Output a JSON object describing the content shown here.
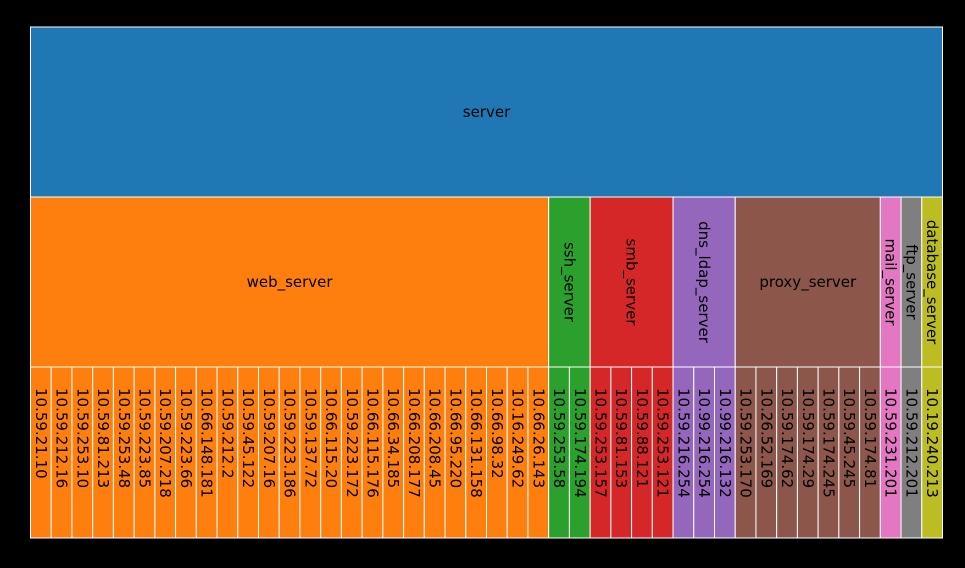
{
  "colors": {
    "background": "#000000",
    "border": "#ffffff",
    "label": "#000000"
  },
  "chart_data": {
    "type": "icicle",
    "title": "",
    "root": {
      "name": "server",
      "color": "#1f77b4",
      "children": [
        {
          "name": "web_server",
          "color": "#ff7f0e",
          "children": [
            "10.59.21.10",
            "10.59.212.16",
            "10.59.253.10",
            "10.59.81.213",
            "10.59.253.48",
            "10.59.223.85",
            "10.59.207.218",
            "10.59.223.66",
            "10.66.148.181",
            "10.59.212.2",
            "10.59.45.122",
            "10.59.207.16",
            "10.59.223.186",
            "10.59.137.72",
            "10.66.115.20",
            "10.59.223.172",
            "10.66.115.176",
            "10.66.34.185",
            "10.66.208.177",
            "10.66.208.45",
            "10.66.95.220",
            "10.66.131.158",
            "10.66.98.32",
            "10.16.249.62",
            "10.66.26.143"
          ]
        },
        {
          "name": "ssh_server",
          "color": "#2ca02c",
          "children": [
            "10.59.253.58",
            "10.59.174.194"
          ]
        },
        {
          "name": "smb_server",
          "color": "#d62728",
          "children": [
            "10.59.253.157",
            "10.59.81.153",
            "10.59.88.121",
            "10.59.253.121"
          ]
        },
        {
          "name": "dns_ldap_server",
          "color": "#9467bd",
          "children": [
            "10.59.216.254",
            "10.99.216.254",
            "10.99.216.132"
          ]
        },
        {
          "name": "proxy_server",
          "color": "#8c564b",
          "children": [
            "10.59.253.170",
            "10.26.52.169",
            "10.59.174.62",
            "10.59.174.29",
            "10.59.174.245",
            "10.59.45.245",
            "10.59.174.81"
          ]
        },
        {
          "name": "mail_server",
          "color": "#e377c2",
          "children": [
            "10.59.231.201"
          ]
        },
        {
          "name": "ftp_server",
          "color": "#7f7f7f",
          "children": [
            "10.59.212.201"
          ]
        },
        {
          "name": "database_server",
          "color": "#bcbd22",
          "children": [
            "10.19.240.213"
          ]
        }
      ]
    }
  }
}
